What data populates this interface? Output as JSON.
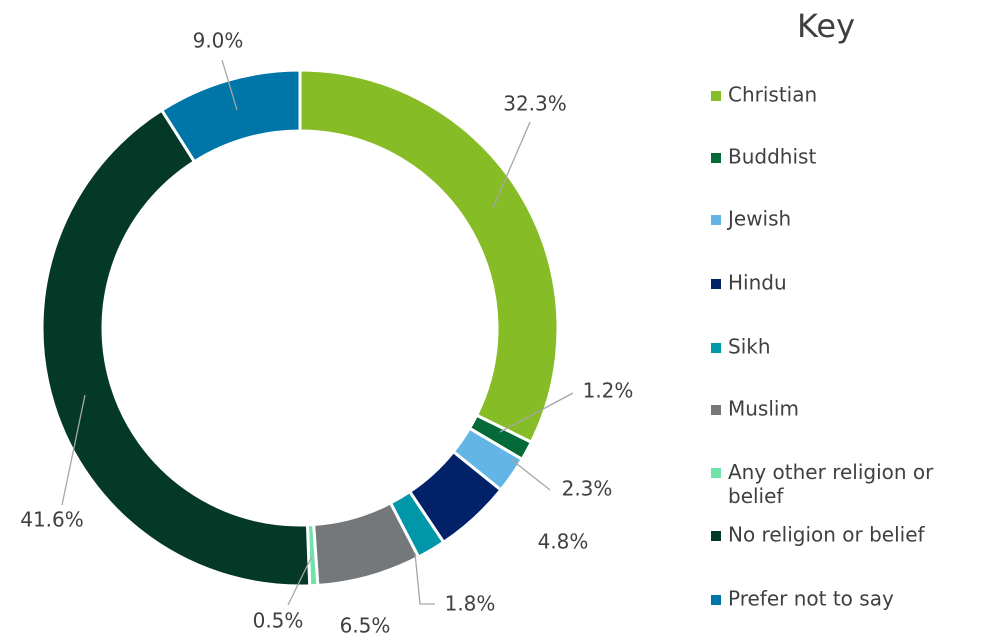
{
  "chart_data": {
    "type": "donut",
    "legend_title": "Key",
    "legend": "right",
    "categories": [
      "Christian",
      "Buddhist",
      "Jewish",
      "Hindu",
      "Sikh",
      "Muslim",
      "Any other religion or belief",
      "No religion or belief",
      "Prefer not to say"
    ],
    "values": [
      32.3,
      1.2,
      2.3,
      4.8,
      1.8,
      6.5,
      0.5,
      41.6,
      9.0
    ],
    "value_labels": [
      "32.3%",
      "1.2%",
      "2.3%",
      "4.8%",
      "1.8%",
      "6.5%",
      "0.5%",
      "41.6%",
      "9.0%"
    ],
    "colors": [
      "#86bc25",
      "#046a38",
      "#62b5e5",
      "#012169",
      "#0097a9",
      "#75787b",
      "#6fe3a8",
      "#043927",
      "#0076a8"
    ]
  }
}
